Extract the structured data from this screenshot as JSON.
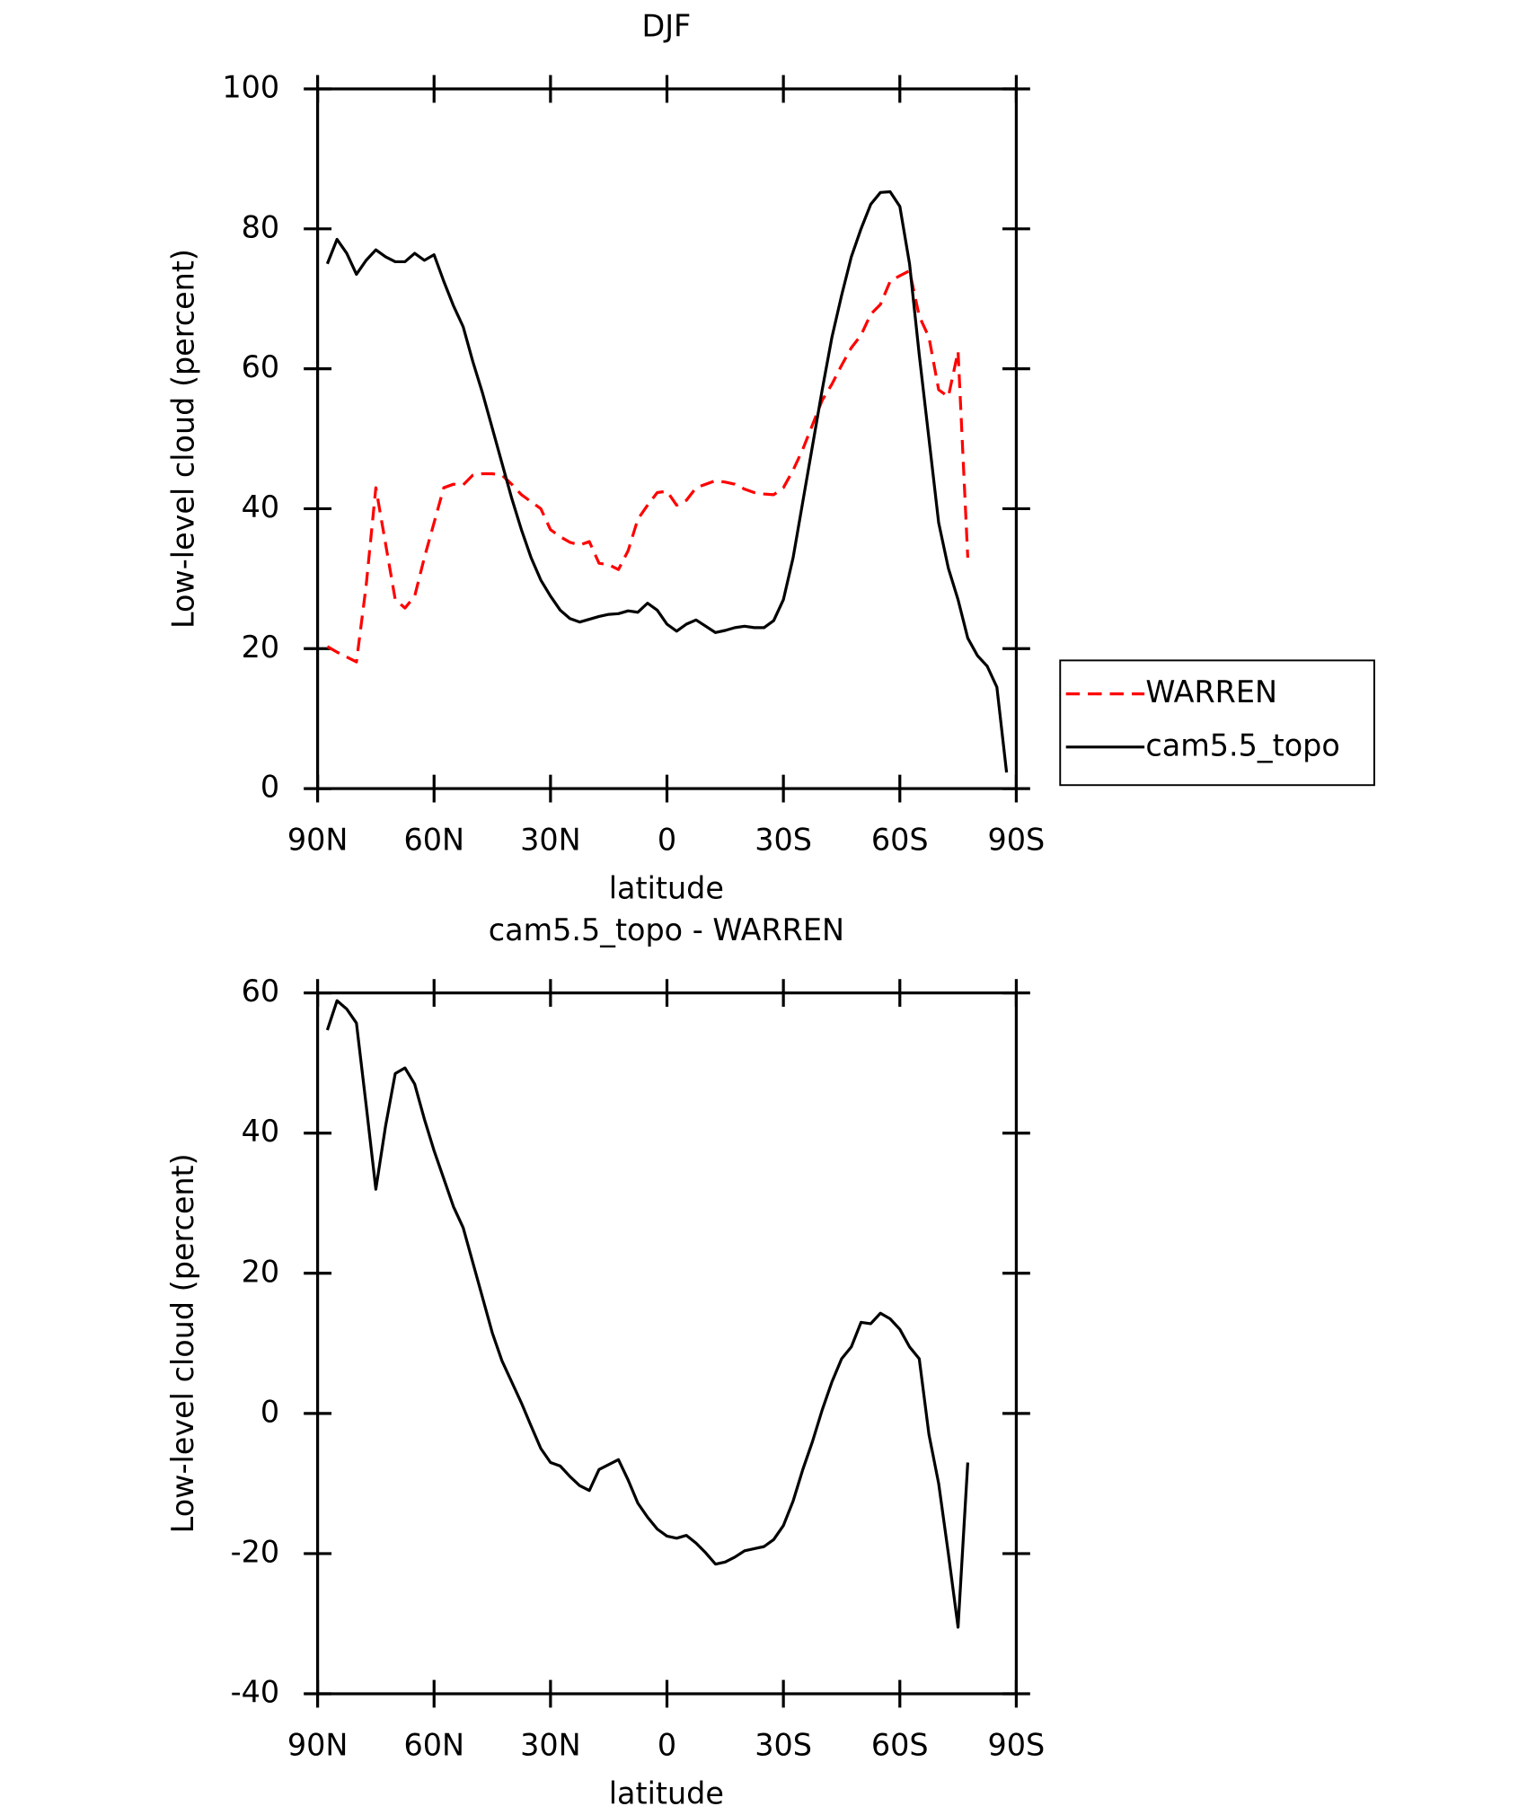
{
  "chart_data": [
    {
      "type": "line",
      "title": "DJF",
      "xlabel": "latitude",
      "ylabel": "Low-level cloud (percent)",
      "x": [
        87.5,
        85,
        82.5,
        80,
        77.5,
        75,
        72.5,
        70,
        67.5,
        65,
        62.5,
        60,
        57.5,
        55,
        52.5,
        50,
        47.5,
        45,
        42.5,
        40,
        37.5,
        35,
        32.5,
        30,
        27.5,
        25,
        22.5,
        20,
        17.5,
        15,
        12.5,
        10,
        7.5,
        5,
        2.5,
        0,
        -2.5,
        -5,
        -7.5,
        -10,
        -12.5,
        -15,
        -17.5,
        -20,
        -22.5,
        -25,
        -27.5,
        -30,
        -32.5,
        -35,
        -37.5,
        -40,
        -42.5,
        -45,
        -47.5,
        -50,
        -52.5,
        -55,
        -57.5,
        -60,
        -62.5,
        -65,
        -67.5,
        -70,
        -72.5,
        -75,
        -77.5,
        -80,
        -82.5,
        -85,
        -87.5
      ],
      "xlim": [
        90,
        -90
      ],
      "xticks": [
        {
          "value": 90,
          "label": "90N"
        },
        {
          "value": 60,
          "label": "60N"
        },
        {
          "value": 30,
          "label": "30N"
        },
        0,
        {
          "value": -30,
          "label": "30S"
        },
        {
          "value": -60,
          "label": "60S"
        },
        {
          "value": -90,
          "label": "90S"
        }
      ],
      "ylim": [
        0,
        100
      ],
      "yticks": [
        0,
        20,
        40,
        60,
        80,
        100
      ],
      "legend": "right-outside",
      "series": [
        {
          "name": "WARREN",
          "color": "#ff0000",
          "dash": true,
          "values": [
            20.3,
            19.5,
            18.8,
            18.1,
            29,
            43,
            35,
            27,
            25.8,
            27.5,
            33,
            38,
            43,
            43.5,
            43.4,
            44.8,
            45,
            45,
            44.8,
            43.5,
            42,
            41,
            40,
            37,
            36,
            35.2,
            34.8,
            35.3,
            32.2,
            32,
            31.3,
            34,
            38.5,
            40.5,
            42.3,
            42.5,
            40.5,
            41.2,
            43,
            43.5,
            44,
            43.8,
            43.5,
            42.8,
            42.3,
            42.1,
            42,
            43,
            45.5,
            48.5,
            52,
            55.5,
            57.8,
            60.5,
            63,
            64.8,
            67.8,
            69.2,
            72.5,
            73.3,
            74,
            67.5,
            64.5,
            57,
            56,
            62.5,
            33,
            null,
            null,
            null,
            null
          ]
        },
        {
          "name": "cam5.5_topo",
          "color": "#000000",
          "dash": false,
          "values": [
            75,
            78.5,
            76.5,
            73.5,
            75.5,
            77,
            76,
            75.3,
            75.3,
            76.5,
            75.5,
            76.3,
            72.5,
            69,
            66,
            61,
            56.5,
            51.5,
            46.5,
            41.5,
            37,
            33,
            29.8,
            27.5,
            25.5,
            24.3,
            23.8,
            24.2,
            24.6,
            24.9,
            25,
            25.4,
            25.2,
            26.5,
            25.5,
            23.5,
            22.5,
            23.5,
            24.1,
            23.2,
            22.3,
            22.6,
            23,
            23.2,
            23,
            23,
            24,
            27,
            33,
            41,
            49,
            57,
            64.5,
            70.5,
            76,
            80,
            83.5,
            85.2,
            85.3,
            83.2,
            75,
            62,
            50,
            38,
            31.5,
            27,
            21.5,
            19,
            17.5,
            14.5,
            2.3
          ]
        }
      ]
    },
    {
      "type": "line",
      "title": "cam5.5_topo - WARREN",
      "xlabel": "latitude",
      "ylabel": "Low-level cloud (percent)",
      "x": [
        87.5,
        85,
        82.5,
        80,
        77.5,
        75,
        72.5,
        70,
        67.5,
        65,
        62.5,
        60,
        57.5,
        55,
        52.5,
        50,
        47.5,
        45,
        42.5,
        40,
        37.5,
        35,
        32.5,
        30,
        27.5,
        25,
        22.5,
        20,
        17.5,
        15,
        12.5,
        10,
        7.5,
        5,
        2.5,
        0,
        -2.5,
        -5,
        -7.5,
        -10,
        -12.5,
        -15,
        -17.5,
        -20,
        -22.5,
        -25,
        -27.5,
        -30,
        -32.5,
        -35,
        -37.5,
        -40,
        -42.5,
        -45,
        -47.5,
        -50,
        -52.5,
        -55,
        -57.5,
        -60,
        -62.5,
        -65,
        -67.5,
        -70,
        -72.5,
        -75,
        -77.5,
        -80,
        -82.5,
        -85,
        -87.5
      ],
      "xlim": [
        90,
        -90
      ],
      "xticks": [
        {
          "value": 90,
          "label": "90N"
        },
        {
          "value": 60,
          "label": "60N"
        },
        {
          "value": 30,
          "label": "30N"
        },
        0,
        {
          "value": -30,
          "label": "30S"
        },
        {
          "value": -60,
          "label": "60S"
        },
        {
          "value": -90,
          "label": "90S"
        }
      ],
      "ylim": [
        -40,
        60
      ],
      "yticks": [
        -40,
        -20,
        0,
        20,
        40,
        60
      ],
      "series": [
        {
          "color": "#000000",
          "dash": false,
          "values": [
            54.7,
            58.9,
            57.7,
            55.7,
            44,
            32,
            41,
            48.5,
            49.3,
            47,
            42,
            37.5,
            33.5,
            29.5,
            26.5,
            21.5,
            16.5,
            11.5,
            7.5,
            4.5,
            1.5,
            -1.8,
            -5,
            -7,
            -7.5,
            -9,
            -10.3,
            -11,
            -8,
            -7.3,
            -6.6,
            -9.5,
            -12.8,
            -14.8,
            -16.5,
            -17.5,
            -17.8,
            -17.4,
            -18.5,
            -19.9,
            -21.5,
            -21.2,
            -20.5,
            -19.6,
            -19.3,
            -19,
            -18,
            -16,
            -12.5,
            -8,
            -4,
            0.5,
            4.5,
            7.8,
            9.5,
            13,
            12.8,
            14.3,
            13.5,
            12,
            9.5,
            7.8,
            -3,
            -10,
            -20,
            -30.5,
            -7,
            null,
            null,
            null,
            null
          ]
        }
      ]
    }
  ]
}
